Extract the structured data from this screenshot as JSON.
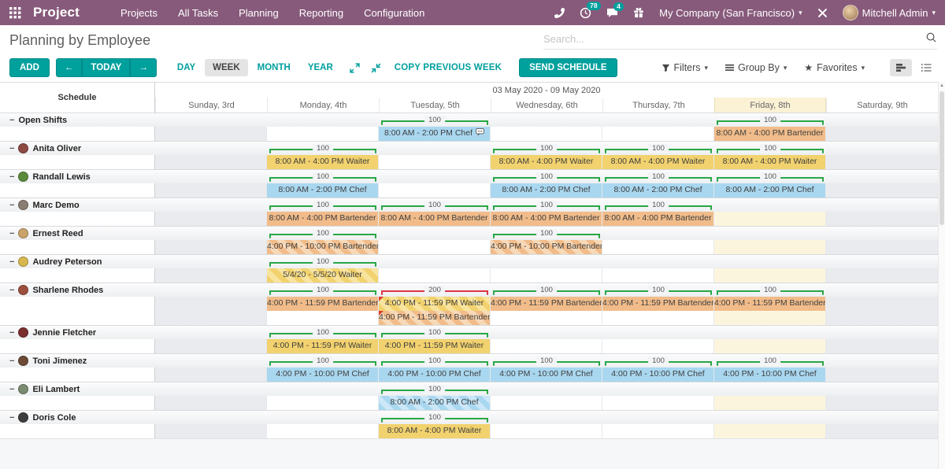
{
  "colors": {
    "navbar": "#875A7B",
    "accent": "#00A09D",
    "bar_ok": "#28a745",
    "bar_over": "#dc3545",
    "shift_yellow": "#F2D26E",
    "shift_yellow_alt": "#F8E49E",
    "shift_orange": "#F1BC8A",
    "shift_orange_alt": "#F7D9B8",
    "shift_blue": "#A9D7F0",
    "shift_blue_alt": "#CBE7F8",
    "today_bg": "#FCF5DE",
    "weekend_bg": "#E9EBEE"
  },
  "icons": {
    "collapse": "−",
    "caret": "▾",
    "star": "★",
    "prev_arrow": "←",
    "next_arrow": "→",
    "scroll_up": "▲"
  },
  "navbar": {
    "app_name": "Project",
    "menu": [
      "Projects",
      "All Tasks",
      "Planning",
      "Reporting",
      "Configuration"
    ],
    "activity_count": "78",
    "message_count": "4",
    "company": "My Company (San Francisco)",
    "user": "Mitchell Admin"
  },
  "control": {
    "title": "Planning by Employee",
    "search_placeholder": "Search...",
    "add": "ADD",
    "today": "TODAY",
    "scales": [
      "DAY",
      "WEEK",
      "MONTH",
      "YEAR"
    ],
    "active_scale": "WEEK",
    "copy_prev": "COPY PREVIOUS WEEK",
    "send": "SEND SCHEDULE",
    "filters_label": "Filters",
    "group_by_label": "Group By",
    "favorites_label": "Favorites"
  },
  "gantt": {
    "range_label": "03 May 2020 - 09 May 2020",
    "left_header": "Schedule",
    "days": [
      {
        "label": "Sunday, 3rd",
        "weekend": true
      },
      {
        "label": "Monday, 4th"
      },
      {
        "label": "Tuesday, 5th"
      },
      {
        "label": "Wednesday, 6th"
      },
      {
        "label": "Thursday, 7th"
      },
      {
        "label": "Friday, 8th",
        "today": true
      },
      {
        "label": "Saturday, 9th",
        "weekend": true
      }
    ],
    "groups": [
      {
        "name": "Open Shifts",
        "avatar_color": null,
        "bars": [
          {
            "day": 2,
            "value": "100"
          },
          {
            "day": 5,
            "value": "100"
          }
        ],
        "rows": [
          [
            {
              "day": 2,
              "label": "8:00 AM - 2:00 PM Chef",
              "color": "blue",
              "note": true
            },
            {
              "day": 5,
              "label": "8:00 AM - 4:00 PM Bartender",
              "color": "orange"
            }
          ]
        ]
      },
      {
        "name": "Anita Oliver",
        "avatar_color": "#8d4a43",
        "bars": [
          {
            "day": 1,
            "value": "100"
          },
          {
            "day": 3,
            "value": "100"
          },
          {
            "day": 4,
            "value": "100"
          },
          {
            "day": 5,
            "value": "100"
          }
        ],
        "rows": [
          [
            {
              "day": 1,
              "label": "8:00 AM - 4:00 PM Waiter",
              "color": "yellow"
            },
            {
              "day": 3,
              "label": "8:00 AM - 4:00 PM Waiter",
              "color": "yellow"
            },
            {
              "day": 4,
              "label": "8:00 AM - 4:00 PM Waiter",
              "color": "yellow"
            },
            {
              "day": 5,
              "label": "8:00 AM - 4:00 PM Waiter",
              "color": "yellow"
            }
          ]
        ]
      },
      {
        "name": "Randall Lewis",
        "avatar_color": "#5c8a3c",
        "bars": [
          {
            "day": 1,
            "value": "100"
          },
          {
            "day": 3,
            "value": "100"
          },
          {
            "day": 4,
            "value": "100"
          },
          {
            "day": 5,
            "value": "100"
          }
        ],
        "rows": [
          [
            {
              "day": 1,
              "label": "8:00 AM - 2:00 PM Chef",
              "color": "blue"
            },
            {
              "day": 3,
              "label": "8:00 AM - 2:00 PM Chef",
              "color": "blue"
            },
            {
              "day": 4,
              "label": "8:00 AM - 2:00 PM Chef",
              "color": "blue"
            },
            {
              "day": 5,
              "label": "8:00 AM - 2:00 PM Chef",
              "color": "blue"
            }
          ]
        ]
      },
      {
        "name": "Marc Demo",
        "avatar_color": "#8a7d72",
        "bars": [
          {
            "day": 1,
            "value": "100"
          },
          {
            "day": 2,
            "value": "100"
          },
          {
            "day": 3,
            "value": "100"
          },
          {
            "day": 4,
            "value": "100"
          }
        ],
        "rows": [
          [
            {
              "day": 1,
              "label": "8:00 AM - 4:00 PM Bartender",
              "color": "orange"
            },
            {
              "day": 2,
              "label": "8:00 AM - 4:00 PM Bartender",
              "color": "orange"
            },
            {
              "day": 3,
              "label": "8:00 AM - 4:00 PM Bartender",
              "color": "orange"
            },
            {
              "day": 4,
              "label": "8:00 AM - 4:00 PM Bartender",
              "color": "orange"
            }
          ]
        ]
      },
      {
        "name": "Ernest Reed",
        "avatar_color": "#c9a36a",
        "bars": [
          {
            "day": 1,
            "value": "100"
          },
          {
            "day": 3,
            "value": "100"
          }
        ],
        "rows": [
          [
            {
              "day": 1,
              "label": "4:00 PM - 10:00 PM Bartender",
              "color": "orange",
              "striped": true
            },
            {
              "day": 3,
              "label": "4:00 PM - 10:00 PM Bartender",
              "color": "orange",
              "striped": true
            }
          ]
        ]
      },
      {
        "name": "Audrey Peterson",
        "avatar_color": "#d8b84e",
        "bars": [
          {
            "day": 1,
            "value": "100"
          }
        ],
        "rows": [
          [
            {
              "day": 1,
              "label": "5/4/20 - 5/5/20 Waiter",
              "color": "yellow",
              "striped": true
            }
          ]
        ]
      },
      {
        "name": "Sharlene Rhodes",
        "avatar_color": "#9c4f3d",
        "bars": [
          {
            "day": 1,
            "value": "100"
          },
          {
            "day": 2,
            "value": "200",
            "over": true
          },
          {
            "day": 3,
            "value": "100"
          },
          {
            "day": 4,
            "value": "100"
          },
          {
            "day": 5,
            "value": "100"
          }
        ],
        "rows": [
          [
            {
              "day": 1,
              "label": "4:00 PM - 11:59 PM Bartender",
              "color": "orange"
            },
            {
              "day": 2,
              "label": "4:00 PM - 11:59 PM Waiter",
              "color": "yellow",
              "striped": true,
              "conflict": true
            },
            {
              "day": 3,
              "label": "4:00 PM - 11:59 PM Bartender",
              "color": "orange"
            },
            {
              "day": 4,
              "label": "4:00 PM - 11:59 PM Bartender",
              "color": "orange"
            },
            {
              "day": 5,
              "label": "4:00 PM - 11:59 PM Bartender",
              "color": "orange"
            }
          ],
          [
            {
              "day": 2,
              "label": "4:00 PM - 11:59 PM Bartender",
              "color": "orange",
              "striped": true,
              "conflict": true
            }
          ]
        ]
      },
      {
        "name": "Jennie Fletcher",
        "avatar_color": "#7a2e2e",
        "bars": [
          {
            "day": 1,
            "value": "100"
          },
          {
            "day": 2,
            "value": "100"
          }
        ],
        "rows": [
          [
            {
              "day": 1,
              "label": "4:00 PM - 11:59 PM Waiter",
              "color": "yellow"
            },
            {
              "day": 2,
              "label": "4:00 PM - 11:59 PM Waiter",
              "color": "yellow"
            }
          ]
        ]
      },
      {
        "name": "Toni Jimenez",
        "avatar_color": "#6b4a36",
        "bars": [
          {
            "day": 1,
            "value": "100"
          },
          {
            "day": 2,
            "value": "100"
          },
          {
            "day": 3,
            "value": "100"
          },
          {
            "day": 4,
            "value": "100"
          },
          {
            "day": 5,
            "value": "100"
          }
        ],
        "rows": [
          [
            {
              "day": 1,
              "label": "4:00 PM - 10:00 PM Chef",
              "color": "blue"
            },
            {
              "day": 2,
              "label": "4:00 PM - 10:00 PM Chef",
              "color": "blue"
            },
            {
              "day": 3,
              "label": "4:00 PM - 10:00 PM Chef",
              "color": "blue"
            },
            {
              "day": 4,
              "label": "4:00 PM - 10:00 PM Chef",
              "color": "blue"
            },
            {
              "day": 5,
              "label": "4:00 PM - 10:00 PM Chef",
              "color": "blue"
            }
          ]
        ]
      },
      {
        "name": "Eli Lambert",
        "avatar_color": "#7a8b6f",
        "bars": [
          {
            "day": 2,
            "value": "100"
          }
        ],
        "rows": [
          [
            {
              "day": 2,
              "label": "8:00 AM - 2:00 PM Chef",
              "color": "blue",
              "striped": true
            }
          ]
        ]
      },
      {
        "name": "Doris Cole",
        "avatar_color": "#3e3e3e",
        "bars": [
          {
            "day": 2,
            "value": "100"
          }
        ],
        "rows": [
          [
            {
              "day": 2,
              "label": "8:00 AM - 4:00 PM Waiter",
              "color": "yellow"
            }
          ]
        ]
      }
    ]
  }
}
